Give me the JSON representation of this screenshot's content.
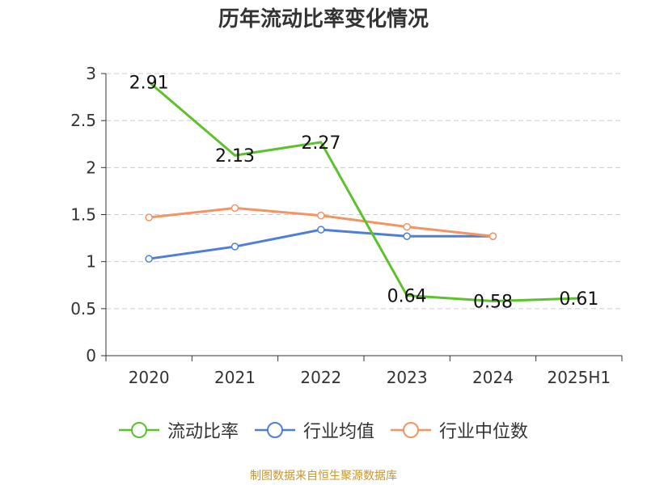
{
  "title": "历年流动比率变化情况",
  "source_note": "制图数据来自恒生聚源数据库",
  "colors": {
    "current_ratio": "#5cc22b",
    "industry_mean": "#4e7fd8",
    "industry_median": "#f39463"
  },
  "chart_data": {
    "type": "line",
    "title": "历年流动比率变化情况",
    "xlabel": "",
    "ylabel": "",
    "categories": [
      "2020",
      "2021",
      "2022",
      "2023",
      "2024",
      "2025H1"
    ],
    "ylim": [
      0,
      3
    ],
    "yticks": [
      "0",
      "0.5",
      "1",
      "1.5",
      "2",
      "2.5",
      "3"
    ],
    "grid": true,
    "legend_position": "bottom",
    "series": [
      {
        "name": "流动比率",
        "color": "#5cc22b",
        "values": [
          2.91,
          2.13,
          2.27,
          0.64,
          0.58,
          0.61
        ],
        "labels": [
          "2.91",
          "2.13",
          "2.27",
          "0.64",
          "0.58",
          "0.61"
        ]
      },
      {
        "name": "行业均值",
        "color": "#4e7fd8",
        "values": [
          1.03,
          1.16,
          1.34,
          1.27,
          1.27,
          null
        ]
      },
      {
        "name": "行业中位数",
        "color": "#f39463",
        "values": [
          1.47,
          1.57,
          1.49,
          1.37,
          1.27,
          null
        ]
      }
    ]
  }
}
